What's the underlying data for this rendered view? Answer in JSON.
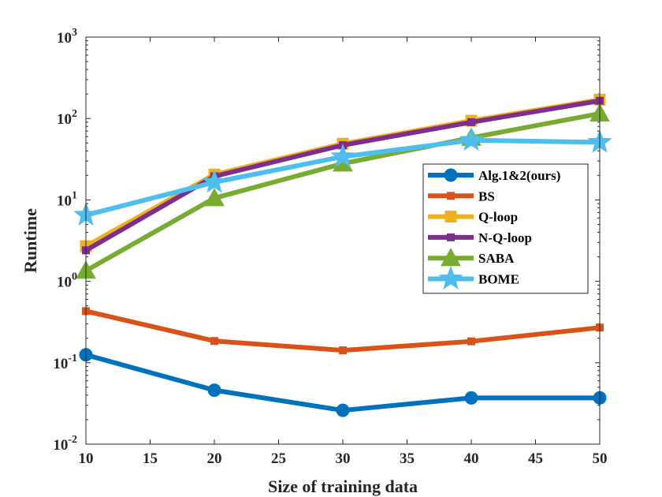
{
  "chart_data": {
    "type": "line",
    "title": "",
    "xlabel": "Size of training data",
    "ylabel": "Runtime",
    "x": [
      10,
      20,
      30,
      40,
      50
    ],
    "xlim": [
      10,
      50
    ],
    "ylim": [
      0.01,
      1000
    ],
    "yscale": "log",
    "xticks": [
      10,
      15,
      20,
      25,
      30,
      35,
      40,
      45,
      50
    ],
    "yticks": [
      {
        "value": 0.01,
        "base": "10",
        "exp": "-2"
      },
      {
        "value": 0.1,
        "base": "10",
        "exp": "-1"
      },
      {
        "value": 1,
        "base": "10",
        "exp": "0"
      },
      {
        "value": 10,
        "base": "10",
        "exp": "1"
      },
      {
        "value": 100,
        "base": "10",
        "exp": "2"
      },
      {
        "value": 1000,
        "base": "10",
        "exp": "3"
      }
    ],
    "grid": false,
    "legend_position": "right",
    "series": [
      {
        "name": "Alg.1&2(ours)",
        "color": "#0072BD",
        "marker": "circle",
        "values": [
          0.125,
          0.046,
          0.026,
          0.037,
          0.037
        ]
      },
      {
        "name": "BS",
        "color": "#D95319",
        "marker": "small-square",
        "values": [
          0.43,
          0.185,
          0.142,
          0.183,
          0.27
        ]
      },
      {
        "name": "Q-loop",
        "color": "#EDB120",
        "marker": "square",
        "values": [
          2.7,
          20.5,
          49,
          94,
          170
        ]
      },
      {
        "name": "N-Q-loop",
        "color": "#7E2F8E",
        "marker": "small-square",
        "values": [
          2.4,
          19.5,
          47,
          90,
          165
        ]
      },
      {
        "name": "SABA",
        "color": "#77AC30",
        "marker": "triangle",
        "values": [
          1.35,
          10.5,
          28,
          58,
          115
        ]
      },
      {
        "name": "BOME",
        "color": "#4DBEEE",
        "marker": "star",
        "values": [
          6.5,
          16.5,
          34,
          54,
          51
        ]
      }
    ]
  }
}
